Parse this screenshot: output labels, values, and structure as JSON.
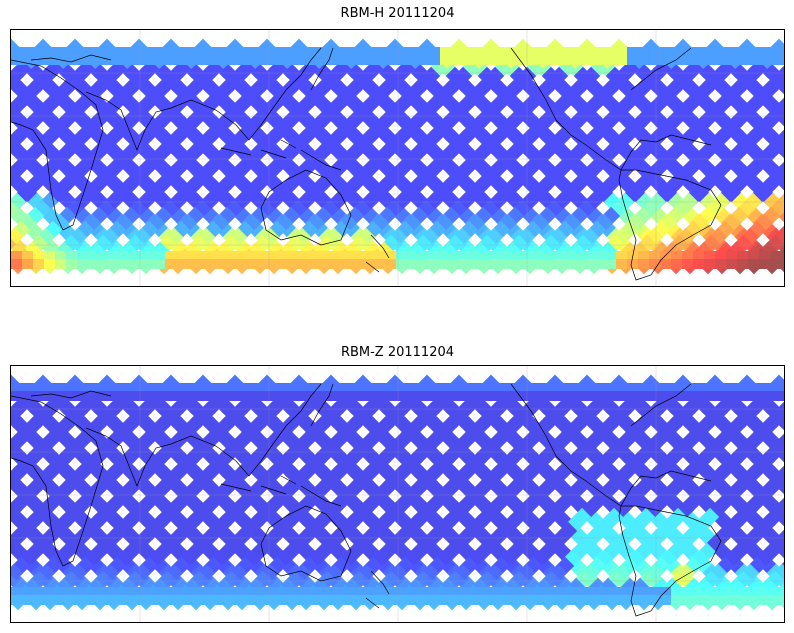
{
  "panels": [
    {
      "title": "RBM-H 20111204",
      "variable": "RBM-H",
      "date": "20111204"
    },
    {
      "title": "RBM-Z 20111204",
      "variable": "RBM-Z",
      "date": "20111204"
    }
  ],
  "map": {
    "projection": "equirectangular",
    "lon_range": [
      0,
      360
    ],
    "lat_range": [
      -60,
      60
    ],
    "gridlines": true,
    "coastlines": true
  },
  "colormap": {
    "name": "jet",
    "alpha": 0.7,
    "low_color": "#5a5af0",
    "mid_color": "#55d6ff",
    "high_color": "#ff6a4a"
  }
}
